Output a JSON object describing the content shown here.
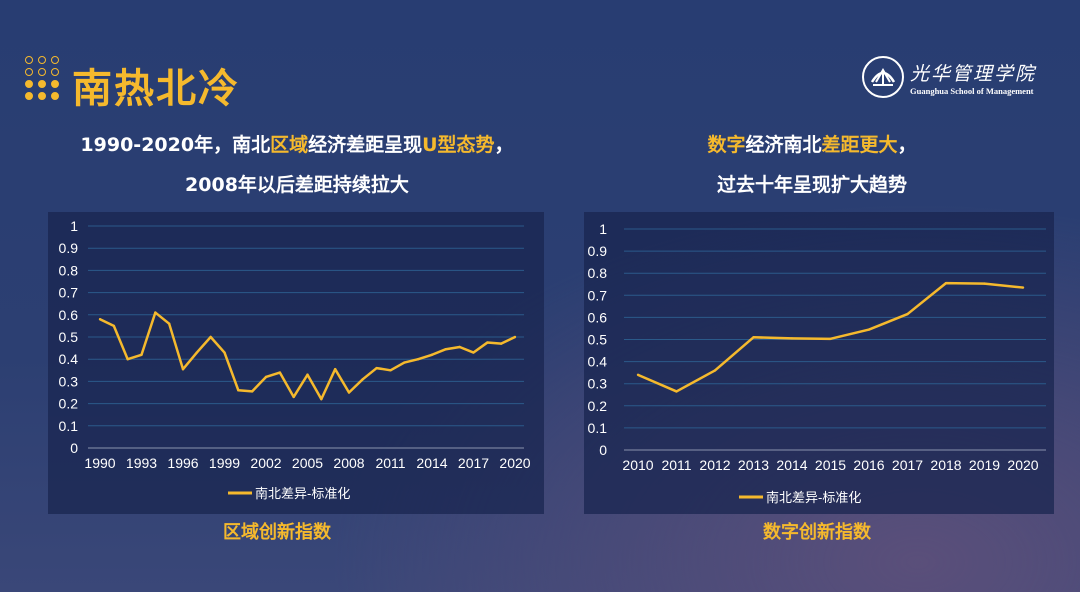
{
  "header": {
    "title": "南热北冷",
    "logo": {
      "cn": "光华管理学院",
      "en": "Guanghua School of Management"
    }
  },
  "left": {
    "subtitle_line1": [
      {
        "text": "1990-2020年，南北",
        "hl": false
      },
      {
        "text": "区域",
        "hl": true
      },
      {
        "text": "经济差距呈现",
        "hl": false
      },
      {
        "text": "U型态势",
        "hl": true
      },
      {
        "text": "，",
        "hl": false
      }
    ],
    "subtitle_line2": [
      {
        "text": "2008年以后差距持续拉大",
        "hl": false
      }
    ],
    "caption": "区域创新指数"
  },
  "right": {
    "subtitle_line1": [
      {
        "text": "数字",
        "hl": true
      },
      {
        "text": "经济南北",
        "hl": false
      },
      {
        "text": "差距更大",
        "hl": true
      },
      {
        "text": "，",
        "hl": false
      }
    ],
    "subtitle_line2": [
      {
        "text": "过去十年呈现扩大趋势",
        "hl": false
      }
    ],
    "caption": "数字创新指数"
  },
  "colors": {
    "accent": "#f5b92d",
    "line": "#f5b92d",
    "grid": "#2b5a8a"
  },
  "chart_data": [
    {
      "type": "line",
      "x": [
        1990,
        1991,
        1992,
        1993,
        1994,
        1995,
        1996,
        1997,
        1998,
        1999,
        2000,
        2001,
        2002,
        2003,
        2004,
        2005,
        2006,
        2007,
        2008,
        2009,
        2010,
        2011,
        2012,
        2013,
        2014,
        2015,
        2016,
        2017,
        2018,
        2019,
        2020
      ],
      "x_ticks": [
        "1990",
        "1993",
        "1996",
        "1999",
        "2002",
        "2005",
        "2008",
        "2011",
        "2014",
        "2017",
        "2020"
      ],
      "y_ticks": [
        "0",
        "0.1",
        "0.2",
        "0.3",
        "0.4",
        "0.5",
        "0.6",
        "0.7",
        "0.8",
        "0.9",
        "1"
      ],
      "ylim": [
        0,
        1
      ],
      "grid": true,
      "legend": "bottom",
      "series": [
        {
          "name": "南北差异-标准化",
          "values": [
            0.58,
            0.55,
            0.4,
            0.42,
            0.61,
            0.56,
            0.355,
            0.43,
            0.5,
            0.43,
            0.26,
            0.255,
            0.32,
            0.34,
            0.23,
            0.33,
            0.22,
            0.355,
            0.25,
            0.31,
            0.36,
            0.35,
            0.385,
            0.4,
            0.42,
            0.445,
            0.455,
            0.43,
            0.475,
            0.47,
            0.5
          ]
        }
      ]
    },
    {
      "type": "line",
      "x": [
        2010,
        2011,
        2012,
        2013,
        2014,
        2015,
        2016,
        2017,
        2018,
        2019,
        2020
      ],
      "x_ticks": [
        "2010",
        "2011",
        "2012",
        "2013",
        "2014",
        "2015",
        "2016",
        "2017",
        "2018",
        "2019",
        "2020"
      ],
      "y_ticks": [
        "0",
        "0.1",
        "0.2",
        "0.3",
        "0.4",
        "0.5",
        "0.6",
        "0.7",
        "0.8",
        "0.9",
        "1"
      ],
      "ylim": [
        0,
        1
      ],
      "grid": true,
      "legend": "bottom",
      "series": [
        {
          "name": "南北差异-标准化",
          "values": [
            0.34,
            0.265,
            0.36,
            0.51,
            0.505,
            0.503,
            0.545,
            0.615,
            0.755,
            0.753,
            0.735
          ]
        }
      ]
    }
  ]
}
